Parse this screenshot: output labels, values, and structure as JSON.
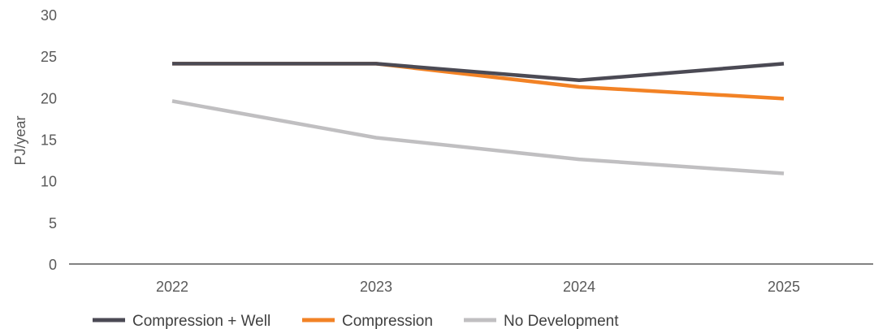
{
  "chart_data": {
    "type": "line",
    "title": "",
    "xlabel": "",
    "ylabel": "PJ/year",
    "categories": [
      "2022",
      "2023",
      "2024",
      "2025"
    ],
    "ylim": [
      0,
      30
    ],
    "yticks": [
      "0",
      "5",
      "10",
      "15",
      "20",
      "25",
      "30"
    ],
    "grid": false,
    "legend_position": "bottom",
    "series": [
      {
        "name": "Compression + Well",
        "color": "#4b4a54",
        "values": [
          24.1,
          24.1,
          22.1,
          24.1
        ]
      },
      {
        "name": "Compression",
        "color": "#f28225",
        "values": [
          24.1,
          24.1,
          21.3,
          19.9
        ]
      },
      {
        "name": "No Development",
        "color": "#c0bfc1",
        "values": [
          19.6,
          15.2,
          12.6,
          10.9
        ]
      }
    ]
  }
}
